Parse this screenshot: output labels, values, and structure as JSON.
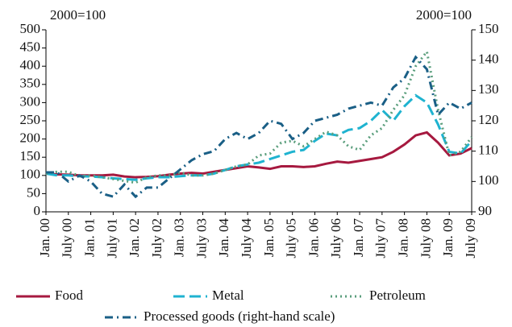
{
  "chart_data": {
    "type": "line",
    "annotations": [
      "2000=100",
      "2000=100"
    ],
    "categories": [
      "Jan. 00",
      null,
      "July 00",
      null,
      "Jan. 01",
      null,
      "July 01",
      null,
      "Jan. 02",
      null,
      "July 02",
      null,
      "Jan. 03",
      null,
      "July 03",
      null,
      "Jan. 04",
      null,
      "July 04",
      null,
      "Jan. 05",
      null,
      "July 05",
      null,
      "Jan. 06",
      null,
      "July 06",
      null,
      "Jan. 07",
      null,
      "July 07",
      null,
      "Jan. 08",
      null,
      "July 08",
      null,
      "Jan. 09",
      null,
      "July 09"
    ],
    "series": [
      {
        "name": "Food",
        "color": "#a6193f",
        "values": [
          105,
          103,
          102,
          100,
          100,
          100,
          102,
          97,
          95,
          96,
          98,
          102,
          105,
          107,
          105,
          110,
          115,
          120,
          125,
          122,
          118,
          125,
          125,
          123,
          125,
          132,
          138,
          135,
          140,
          145,
          150,
          165,
          185,
          210,
          218,
          190,
          155,
          160,
          175
        ]
      },
      {
        "name": "Metal",
        "color": "#1fb3d0",
        "values": [
          105,
          100,
          100,
          98,
          97,
          95,
          92,
          90,
          88,
          92,
          95,
          95,
          98,
          100,
          100,
          105,
          115,
          125,
          130,
          135,
          145,
          155,
          165,
          170,
          195,
          215,
          210,
          225,
          230,
          250,
          280,
          250,
          290,
          320,
          300,
          240,
          165,
          160,
          195
        ]
      },
      {
        "name": "Petroleum",
        "color": "#5a9e7c",
        "values": [
          105,
          110,
          110,
          98,
          100,
          95,
          90,
          85,
          80,
          95,
          100,
          100,
          108,
          100,
          100,
          105,
          115,
          125,
          130,
          155,
          160,
          190,
          195,
          180,
          200,
          220,
          210,
          180,
          170,
          210,
          230,
          280,
          320,
          400,
          440,
          280,
          155,
          165,
          205
        ]
      },
      {
        "name": "Processed goods (right-hand scale)",
        "color": "#1a5f86",
        "axis": "y2",
        "values": [
          103,
          103,
          100,
          102,
          100,
          96,
          95,
          99,
          95,
          98,
          98,
          101,
          104,
          107,
          109,
          110,
          114,
          116,
          114,
          116,
          120,
          119,
          114,
          116,
          120,
          121,
          122,
          124,
          125,
          126,
          125,
          131,
          134,
          141,
          137,
          122,
          126,
          124,
          126
        ]
      }
    ],
    "ylim": [
      0,
      500
    ],
    "yticks": [
      0,
      50,
      100,
      150,
      200,
      250,
      300,
      350,
      400,
      450,
      500
    ],
    "y2lim": [
      90,
      150
    ],
    "y2ticks": [
      90,
      100,
      110,
      120,
      130,
      140,
      150
    ]
  }
}
